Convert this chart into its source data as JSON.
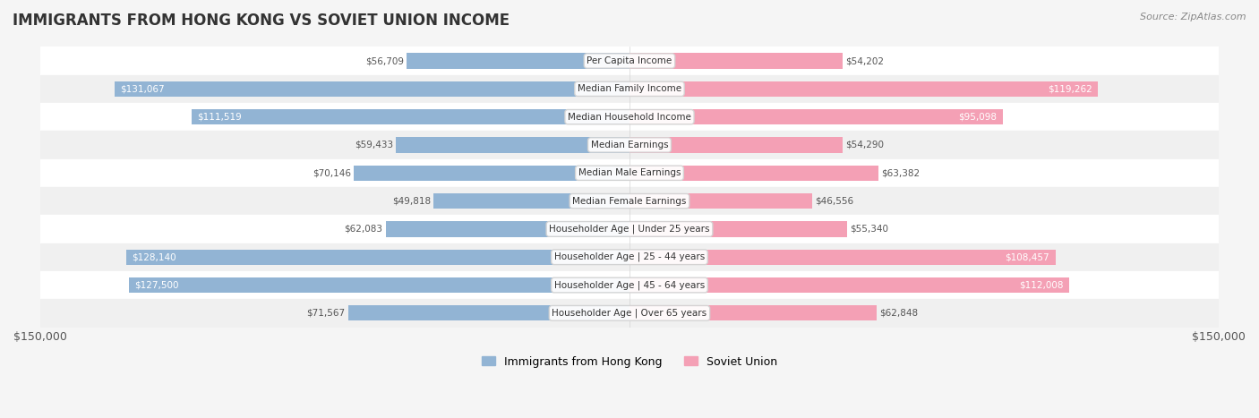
{
  "title": "IMMIGRANTS FROM HONG KONG VS SOVIET UNION INCOME",
  "source": "Source: ZipAtlas.com",
  "categories": [
    "Per Capita Income",
    "Median Family Income",
    "Median Household Income",
    "Median Earnings",
    "Median Male Earnings",
    "Median Female Earnings",
    "Householder Age | Under 25 years",
    "Householder Age | 25 - 44 years",
    "Householder Age | 45 - 64 years",
    "Householder Age | Over 65 years"
  ],
  "hong_kong_values": [
    56709,
    131067,
    111519,
    59433,
    70146,
    49818,
    62083,
    128140,
    127500,
    71567
  ],
  "soviet_values": [
    54202,
    119262,
    95098,
    54290,
    63382,
    46556,
    55340,
    108457,
    112008,
    62848
  ],
  "hong_kong_color": "#92b4d4",
  "soviet_color": "#f4a0b5",
  "hong_kong_label_color": "#4a7aaa",
  "soviet_label_color": "#e06080",
  "max_value": 150000,
  "bar_height": 0.55,
  "bg_color": "#f5f5f5",
  "row_colors": [
    "#ffffff",
    "#f0f0f0"
  ],
  "legend_hk": "Immigrants from Hong Kong",
  "legend_su": "Soviet Union",
  "xlabel_left": "$150,000",
  "xlabel_right": "$150,000"
}
